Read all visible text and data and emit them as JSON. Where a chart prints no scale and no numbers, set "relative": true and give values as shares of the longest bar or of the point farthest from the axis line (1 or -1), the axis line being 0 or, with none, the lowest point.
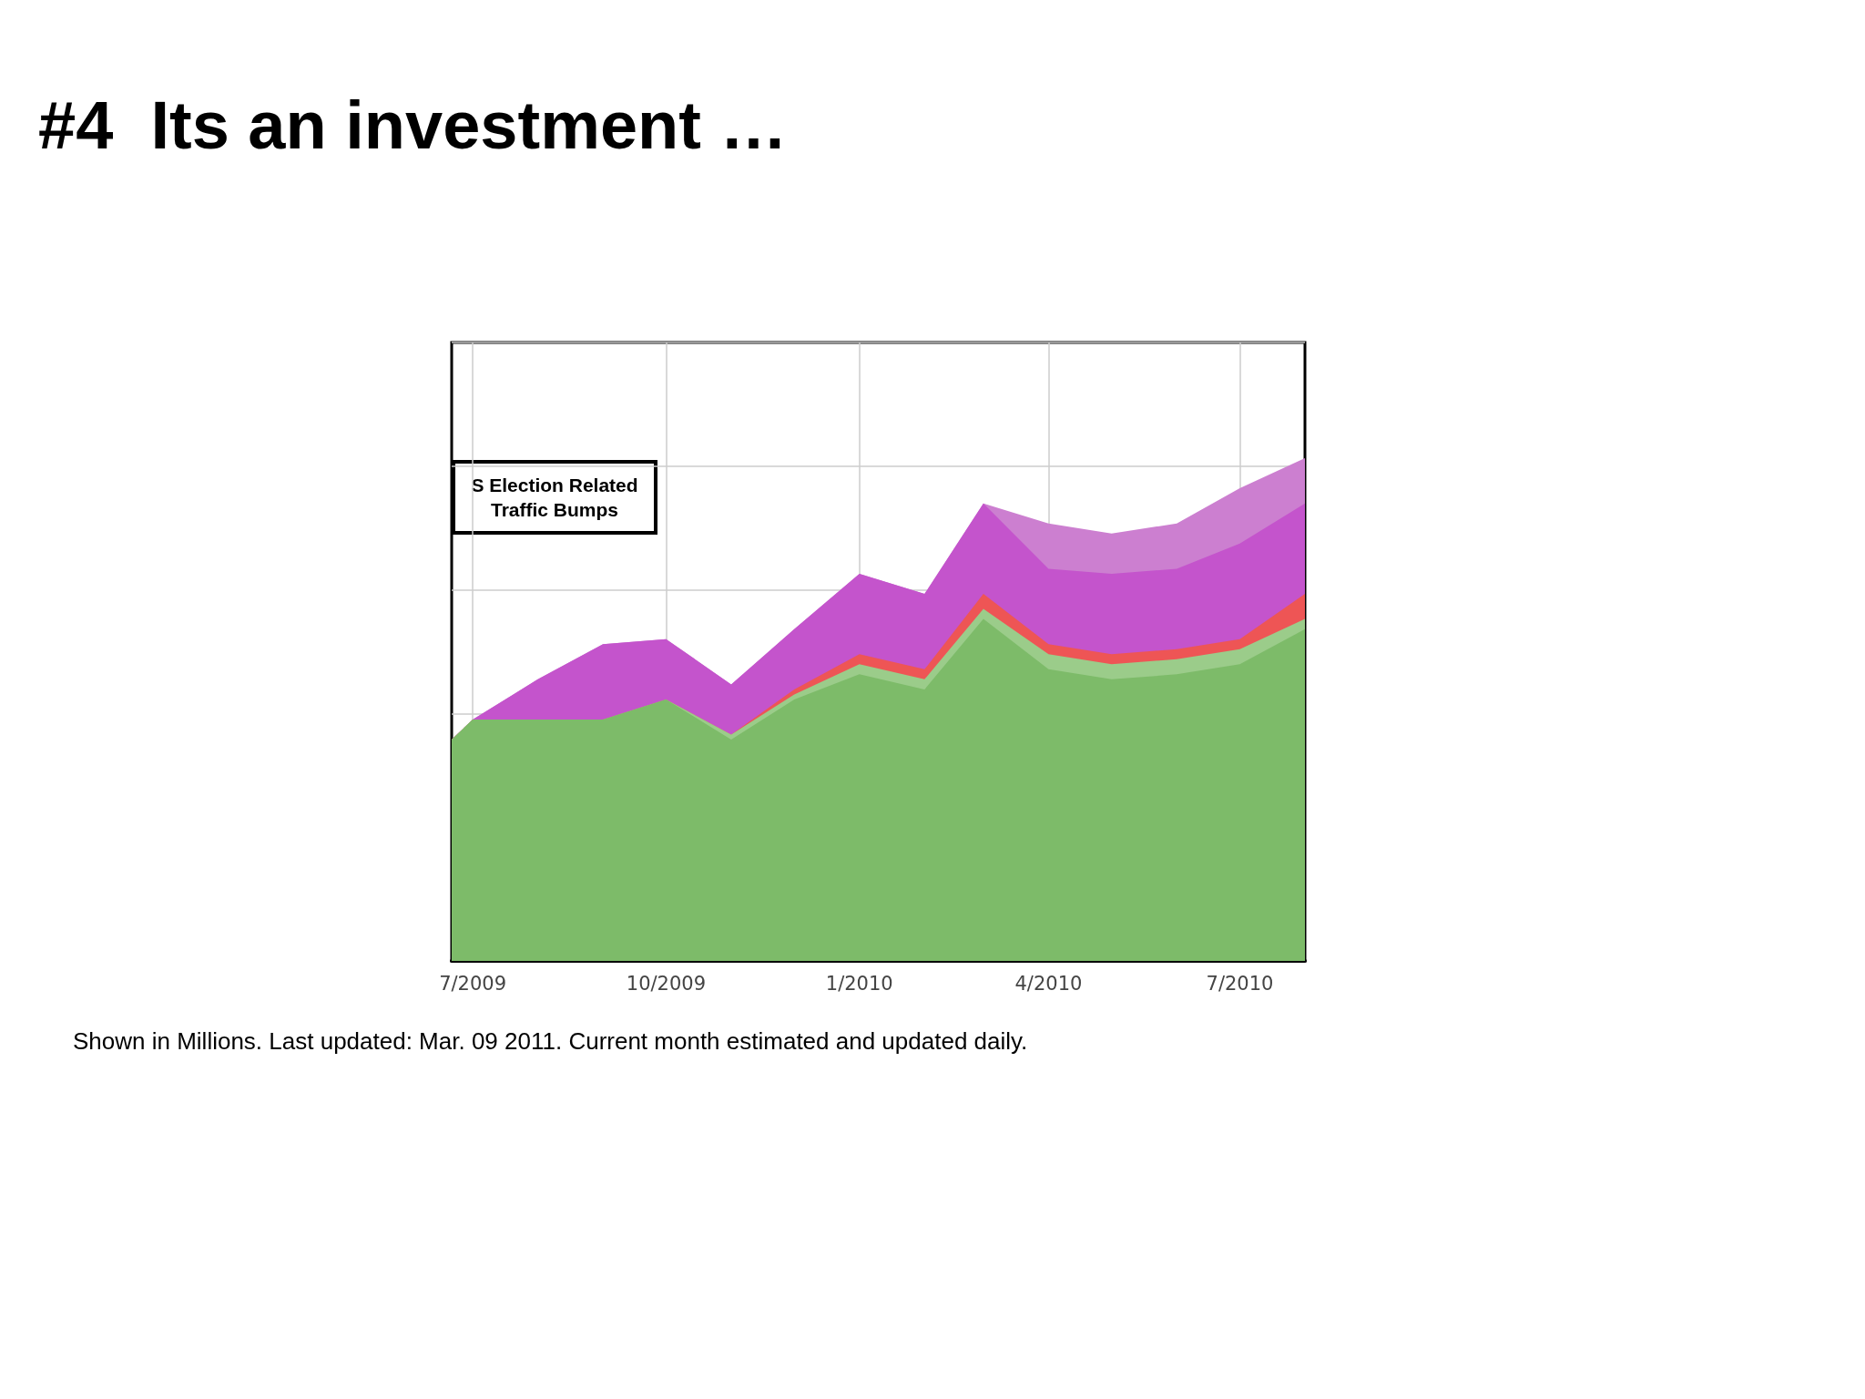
{
  "chart_data": {
    "type": "area",
    "title": "#4  Its an investment …",
    "relative": true,
    "stacked": true,
    "grid": true,
    "x": [
      "2009-06-21",
      "2009-07",
      "2009-08",
      "2009-09",
      "2009-10",
      "2009-11",
      "2009-12",
      "2010-01",
      "2010-02",
      "2010-03",
      "2010-04",
      "2010-05",
      "2010-06",
      "2010-07",
      "2010-08"
    ],
    "xlim": [
      "2009-06-21",
      "2010-08-01"
    ],
    "xticks": [
      {
        "value": "2009-07",
        "label": "7/2009"
      },
      {
        "value": "2009-10",
        "label": "10/2009"
      },
      {
        "value": "2010-01",
        "label": "1/2010"
      },
      {
        "value": "2010-04",
        "label": "4/2010"
      },
      {
        "value": "2010-07",
        "label": "7/2010"
      }
    ],
    "series": [
      {
        "color": "#7dbb69",
        "values": [
          0.44,
          0.48,
          0.48,
          0.48,
          0.52,
          0.44,
          0.52,
          0.57,
          0.54,
          0.68,
          0.58,
          0.56,
          0.57,
          0.59,
          0.66
        ]
      },
      {
        "color": "#9bcc8a",
        "values": [
          0,
          0,
          0,
          0,
          0,
          0.01,
          0.01,
          0.02,
          0.02,
          0.02,
          0.03,
          0.03,
          0.03,
          0.03,
          0.02
        ]
      },
      {
        "color": "#ee5555",
        "values": [
          0,
          0,
          0,
          0,
          0,
          0,
          0.01,
          0.02,
          0.02,
          0.03,
          0.02,
          0.02,
          0.02,
          0.02,
          0.05
        ]
      },
      {
        "color": "#c454cc",
        "values": [
          0,
          0,
          0.08,
          0.15,
          0.12,
          0.1,
          0.12,
          0.16,
          0.15,
          0.18,
          0.15,
          0.16,
          0.16,
          0.19,
          0.18
        ]
      },
      {
        "color": "#cc7fd0",
        "values": [
          0,
          0,
          0,
          0,
          0,
          0,
          0,
          0,
          0,
          0,
          0.09,
          0.08,
          0.09,
          0.11,
          0.09
        ]
      }
    ],
    "annotations": [
      "S Election Related\nTraffic Bumps",
      "Shown in Millions. Last updated: Mar. 09 2011. Current month estimated and updated daily."
    ]
  }
}
